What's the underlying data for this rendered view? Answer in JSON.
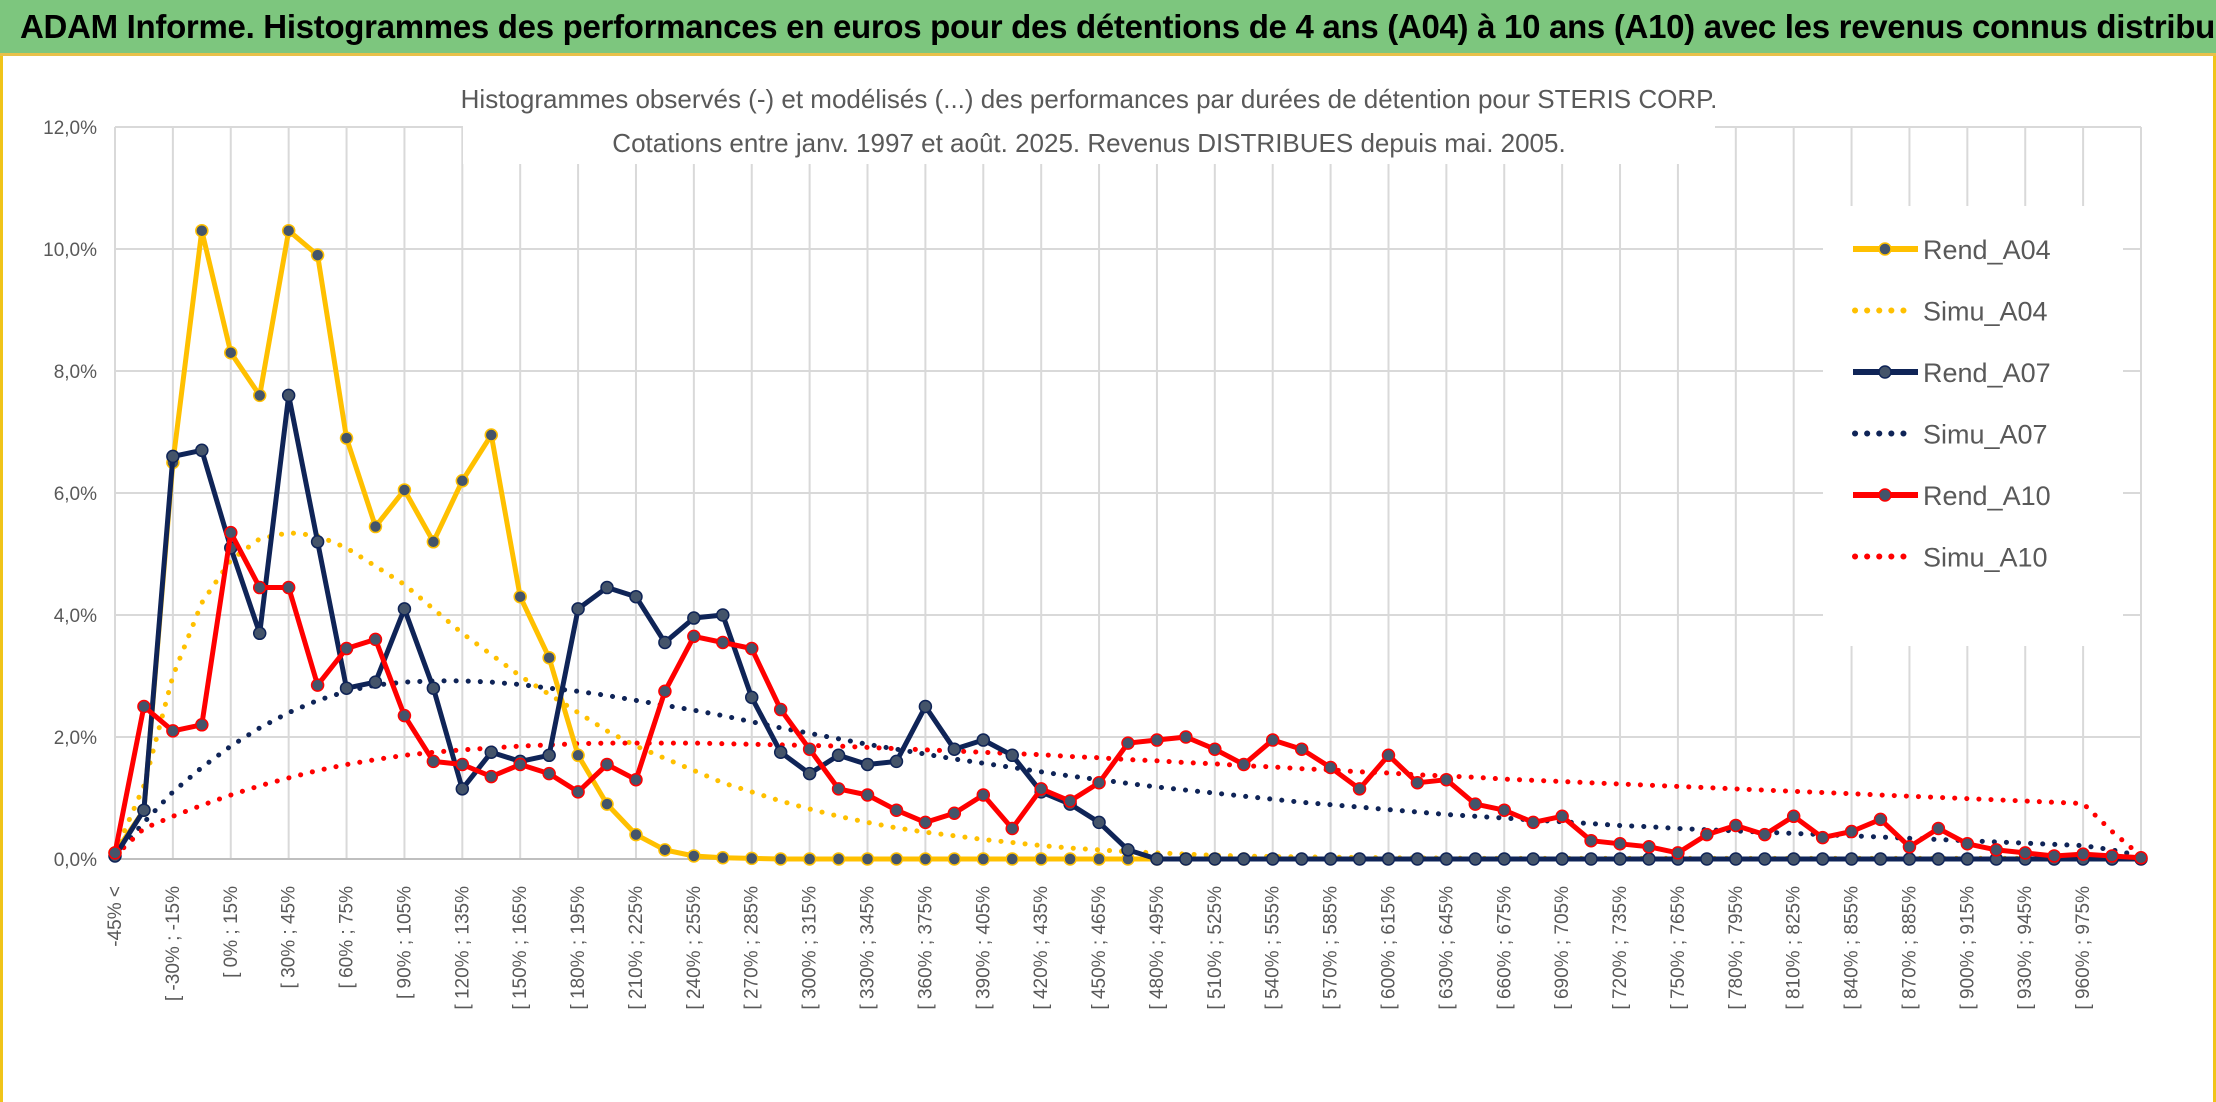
{
  "header": {
    "title": "ADAM Informe. Histogrammes des performances en euros pour des détentions de 4 ans (A04) à 10 ans (A10) avec les revenus connus distribués"
  },
  "chart_data": {
    "type": "line",
    "title_line1": "Histogrammes observés (-) et modélisés (...) des performances par durées de détention pour STERIS CORP.",
    "title_line2": "Cotations entre janv. 1997 et août. 2025. Revenus DISTRIBUES depuis mai. 2005.",
    "ylim": [
      0,
      12
    ],
    "y_ticks": [
      "0,0%",
      "2,0%",
      "4,0%",
      "6,0%",
      "8,0%",
      "10,0%",
      "12,0%"
    ],
    "y_tick_values": [
      0,
      2,
      4,
      6,
      8,
      10,
      12
    ],
    "grid": true,
    "legend_position": "right",
    "x_tick_labels": [
      "-45% <",
      "[ -30% ; -15%",
      "[ 0% ; 15%",
      "[ 30% ; 45%",
      "[ 60% ; 75%",
      "[ 90% ; 105%",
      "[ 120% ; 135%",
      "[ 150% ; 165%",
      "[ 180% ; 195%",
      "[ 210% ; 225%",
      "[ 240% ; 255%",
      "[ 270% ; 285%",
      "[ 300% ; 315%",
      "[ 330% ; 345%",
      "[ 360% ; 375%",
      "[ 390% ; 405%",
      "[ 420% ; 435%",
      "[ 450% ; 465%",
      "[ 480% ; 495%",
      "[ 510% ; 525%",
      "[ 540% ; 555%",
      "[ 570% ; 585%",
      "[ 600% ; 615%",
      "[ 630% ; 645%",
      "[ 660% ; 675%",
      "[ 690% ; 705%",
      "[ 720% ; 735%",
      "[ 750% ; 765%",
      "[ 780% ; 795%",
      "[ 810% ; 825%",
      "[ 840% ; 855%",
      "[ 870% ; 885%",
      "[ 900% ; 915%",
      "[ 930% ; 945%",
      "[ 960% ; 975%"
    ],
    "series": [
      {
        "name": "Rend_A04",
        "color": "#ffc000",
        "style": "solid",
        "values": [
          0.1,
          0.8,
          6.5,
          10.3,
          8.3,
          7.6,
          10.3,
          9.9,
          6.9,
          5.45,
          6.05,
          5.2,
          6.2,
          6.95,
          4.3,
          3.3,
          1.7,
          0.9,
          0.4,
          0.15,
          0.05,
          0.02,
          0.01,
          0,
          0,
          0,
          0,
          0,
          0,
          0,
          0,
          0,
          0,
          0,
          0,
          0,
          0,
          0,
          0,
          0
        ]
      },
      {
        "name": "Simu_A04",
        "color": "#ffc000",
        "style": "dotted",
        "values": [
          0.1,
          1.2,
          3.0,
          4.2,
          4.9,
          5.25,
          5.35,
          5.3,
          5.1,
          4.8,
          4.5,
          4.1,
          3.7,
          3.35,
          3.0,
          2.7,
          2.4,
          2.1,
          1.85,
          1.65,
          1.45,
          1.25,
          1.1,
          0.95,
          0.82,
          0.7,
          0.6,
          0.51,
          0.44,
          0.38,
          0.32,
          0.27,
          0.22,
          0.18,
          0.15,
          0.12,
          0.1,
          0.08,
          0.06,
          0.05,
          0.04,
          0.035,
          0.03,
          0.025,
          0.02,
          0.018,
          0.015,
          0.012,
          0.01,
          0.01,
          0.01,
          0.01,
          0.01,
          0.01,
          0.01,
          0.01,
          0.01,
          0.01,
          0.01,
          0.01,
          0.01,
          0.01,
          0.01,
          0.01,
          0.01,
          0.01,
          0.01,
          0.01,
          0.01,
          0.01
        ]
      },
      {
        "name": "Rend_A07",
        "color": "#0f2457",
        "style": "solid",
        "values": [
          0.05,
          0.8,
          6.6,
          6.7,
          5.1,
          3.7,
          7.6,
          5.2,
          2.8,
          2.9,
          4.1,
          2.8,
          1.15,
          1.75,
          1.6,
          1.7,
          4.1,
          4.45,
          4.3,
          3.55,
          3.95,
          4.0,
          2.65,
          1.75,
          1.4,
          1.7,
          1.55,
          1.6,
          2.5,
          1.8,
          1.95,
          1.7,
          1.1,
          0.9,
          0.6,
          0.15,
          0,
          0,
          0,
          0,
          0,
          0,
          0,
          0,
          0,
          0,
          0,
          0,
          0,
          0,
          0,
          0,
          0,
          0,
          0,
          0,
          0,
          0,
          0,
          0,
          0,
          0,
          0,
          0,
          0,
          0,
          0,
          0,
          0,
          0,
          0
        ]
      },
      {
        "name": "Simu_A07",
        "color": "#0f2457",
        "style": "dotted",
        "values": [
          0.05,
          0.6,
          1.1,
          1.5,
          1.85,
          2.15,
          2.4,
          2.6,
          2.75,
          2.85,
          2.9,
          2.92,
          2.92,
          2.9,
          2.86,
          2.8,
          2.75,
          2.68,
          2.6,
          2.52,
          2.44,
          2.35,
          2.25,
          2.15,
          2.06,
          1.97,
          1.88,
          1.8,
          1.72,
          1.64,
          1.57,
          1.5,
          1.43,
          1.36,
          1.3,
          1.24,
          1.18,
          1.13,
          1.08,
          1.03,
          0.98,
          0.93,
          0.89,
          0.85,
          0.81,
          0.77,
          0.73,
          0.7,
          0.67,
          0.64,
          0.61,
          0.58,
          0.55,
          0.53,
          0.5,
          0.48,
          0.46,
          0.44,
          0.42,
          0.4,
          0.38,
          0.36,
          0.34,
          0.32,
          0.3,
          0.28,
          0.26,
          0.24,
          0.22,
          0.15,
          0.05
        ]
      },
      {
        "name": "Rend_A10",
        "color": "#ff0000",
        "style": "solid",
        "values": [
          0.1,
          2.5,
          2.1,
          2.2,
          5.35,
          4.45,
          4.45,
          2.85,
          3.45,
          3.6,
          2.35,
          1.6,
          1.55,
          1.35,
          1.55,
          1.4,
          1.1,
          1.55,
          1.3,
          2.75,
          3.65,
          3.55,
          3.45,
          2.45,
          1.8,
          1.15,
          1.05,
          0.8,
          0.6,
          0.75,
          1.05,
          0.5,
          1.15,
          0.95,
          1.25,
          1.9,
          1.95,
          2.0,
          1.8,
          1.55,
          1.95,
          1.8,
          1.5,
          1.15,
          1.7,
          1.25,
          1.3,
          0.9,
          0.8,
          0.6,
          0.7,
          0.3,
          0.25,
          0.2,
          0.1,
          0.4,
          0.55,
          0.4,
          0.7,
          0.35,
          0.45,
          0.65,
          0.2,
          0.5,
          0.25,
          0.15,
          0.1,
          0.05,
          0.08,
          0.05,
          0.02
        ]
      },
      {
        "name": "Simu_A10",
        "color": "#ff0000",
        "style": "dotted",
        "values": [
          0.05,
          0.5,
          0.7,
          0.88,
          1.05,
          1.2,
          1.33,
          1.45,
          1.55,
          1.63,
          1.7,
          1.75,
          1.79,
          1.82,
          1.85,
          1.87,
          1.89,
          1.9,
          1.9,
          1.9,
          1.9,
          1.89,
          1.88,
          1.87,
          1.86,
          1.85,
          1.83,
          1.81,
          1.79,
          1.77,
          1.75,
          1.73,
          1.71,
          1.68,
          1.66,
          1.63,
          1.61,
          1.58,
          1.56,
          1.53,
          1.51,
          1.48,
          1.46,
          1.43,
          1.41,
          1.38,
          1.36,
          1.34,
          1.31,
          1.29,
          1.27,
          1.25,
          1.23,
          1.21,
          1.19,
          1.17,
          1.15,
          1.13,
          1.11,
          1.09,
          1.07,
          1.05,
          1.03,
          1.01,
          0.99,
          0.97,
          0.95,
          0.93,
          0.91,
          0.45,
          0.05
        ]
      }
    ]
  }
}
